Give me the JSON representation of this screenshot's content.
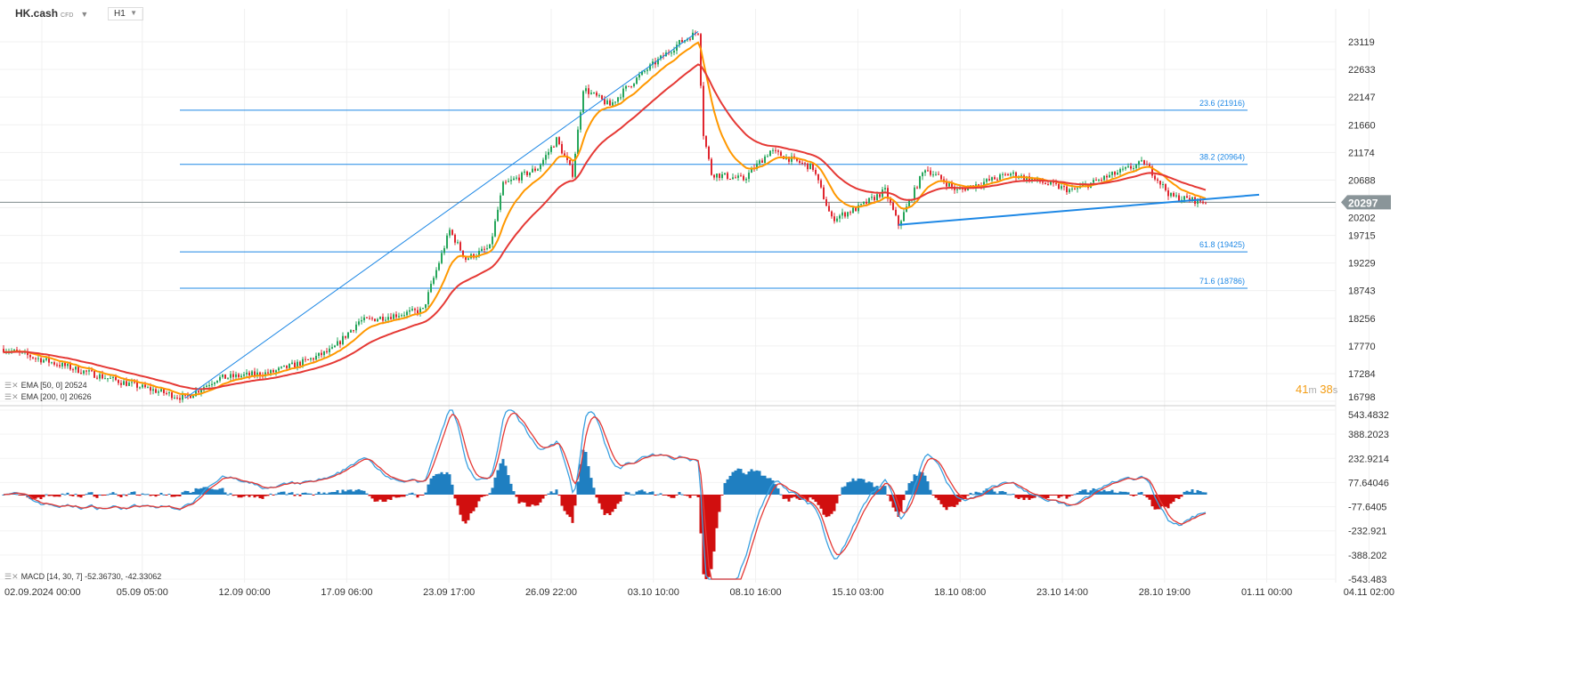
{
  "header": {
    "symbol": "HK.cash",
    "symbol_type": "CFD",
    "timeframe": "H1"
  },
  "legend": {
    "ema50": "EMA [50, 0] 20524",
    "ema200": "EMA [200, 0] 20626",
    "macd": "MACD [14, 30, 7] -52.36730, -42.33062"
  },
  "countdown": {
    "min": "41",
    "min_unit": "m",
    "sec": "38",
    "sec_unit": "s"
  },
  "colors": {
    "up": "#26a65b",
    "down": "#e0262f",
    "ema50": "#ff9800",
    "ema200": "#e53935",
    "fib": "#1e88e5",
    "macd_pos": "#1f7fc1",
    "macd_neg": "#d10f0f",
    "macd_line": "#3aa0e0",
    "signal_line": "#e53935"
  },
  "chart_data": {
    "type": "candlestick",
    "title": "HK.cash H1",
    "price_axis": {
      "ticks": [
        "23119",
        "22633",
        "22147",
        "21660",
        "21174",
        "20688",
        "20202",
        "19715",
        "19229",
        "18743",
        "18256",
        "17770",
        "17284",
        "16798"
      ],
      "range": [
        16798,
        23119
      ]
    },
    "last_price": "20297",
    "x_ticks": [
      "02.09.2024  00:00",
      "05.09  05:00",
      "12.09  00:00",
      "17.09  06:00",
      "23.09  17:00",
      "26.09  22:00",
      "03.10  10:00",
      "08.10  16:00",
      "15.10  03:00",
      "18.10  08:00",
      "23.10  14:00",
      "28.10  19:00",
      "01.11  00:00",
      "04.11  02:00"
    ],
    "price_path": [
      [
        0,
        17720
      ],
      [
        43,
        17150
      ],
      [
        68,
        16850
      ],
      [
        80,
        17200
      ],
      [
        100,
        17300
      ],
      [
        113,
        17500
      ],
      [
        123,
        17700
      ],
      [
        133,
        18200
      ],
      [
        157,
        18400
      ],
      [
        167,
        19800
      ],
      [
        173,
        19300
      ],
      [
        182,
        19500
      ],
      [
        187,
        20600
      ],
      [
        200,
        20900
      ],
      [
        207,
        21400
      ],
      [
        213,
        20800
      ],
      [
        217,
        22300
      ],
      [
        227,
        22000
      ],
      [
        233,
        22300
      ],
      [
        240,
        22600
      ],
      [
        253,
        23100
      ],
      [
        260,
        23300
      ],
      [
        262,
        21500
      ],
      [
        265,
        20800
      ],
      [
        277,
        20700
      ],
      [
        287,
        21200
      ],
      [
        303,
        20900
      ],
      [
        310,
        20000
      ],
      [
        320,
        20200
      ],
      [
        330,
        20500
      ],
      [
        335,
        19900
      ],
      [
        345,
        20900
      ],
      [
        357,
        20500
      ],
      [
        377,
        20800
      ],
      [
        400,
        20500
      ],
      [
        427,
        21000
      ],
      [
        437,
        20400
      ],
      [
        450,
        20297
      ]
    ],
    "fib_levels": [
      {
        "label": "23.6 (21916)",
        "value": 21916
      },
      {
        "label": "38.2 (20964)",
        "value": 20964
      },
      {
        "label": "61.8 (19425)",
        "value": 19425
      },
      {
        "label": "71.6 (18786)",
        "value": 18786
      }
    ],
    "trendlines": [
      {
        "from": [
          68,
          16850
        ],
        "to": [
          260,
          23300
        ]
      },
      {
        "from": [
          335,
          19900
        ],
        "to": [
          470,
          20430
        ]
      }
    ],
    "macd_axis": {
      "ticks": [
        "543.4832",
        "388.2023",
        "232.9214",
        "77.64046",
        "-77.6405",
        "-232.921",
        "-388.202",
        "-543.483"
      ],
      "range": [
        -543.483,
        543.4832
      ]
    },
    "indicators": {
      "ema": [
        50,
        200
      ],
      "macd": [
        14,
        30,
        7
      ]
    }
  }
}
